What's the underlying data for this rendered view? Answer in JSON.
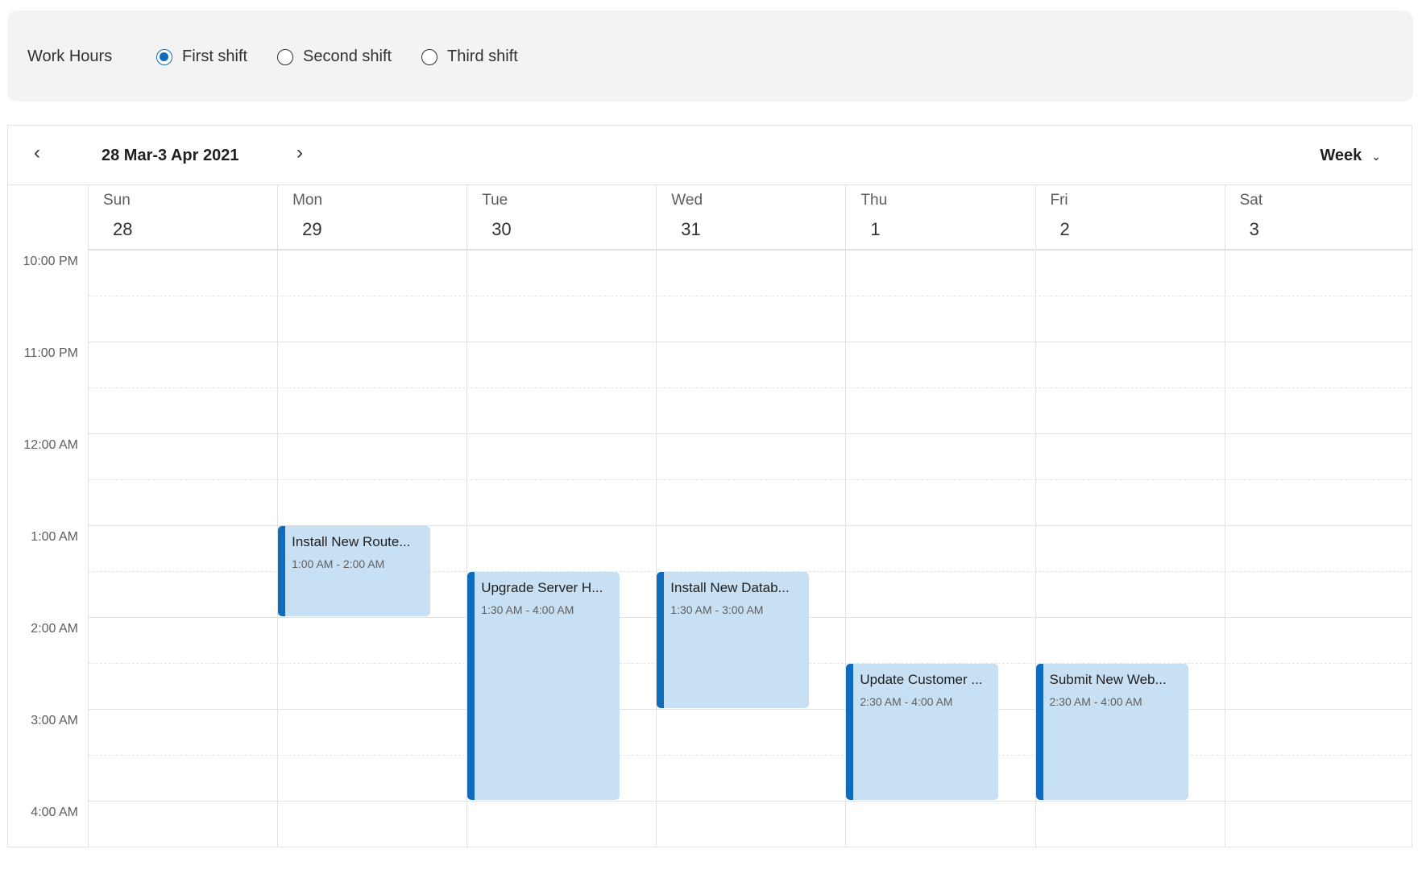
{
  "work_hours": {
    "label": "Work Hours",
    "options": [
      {
        "label": "First shift",
        "selected": true
      },
      {
        "label": "Second shift",
        "selected": false
      },
      {
        "label": "Third shift",
        "selected": false
      }
    ]
  },
  "calendar": {
    "prev_icon": "chevron-left-icon",
    "next_icon": "chevron-right-icon",
    "date_range": "28 Mar-3 Apr 2021",
    "view": "Week",
    "days": [
      {
        "name": "Sun",
        "date": "28"
      },
      {
        "name": "Mon",
        "date": "29"
      },
      {
        "name": "Tue",
        "date": "30"
      },
      {
        "name": "Wed",
        "date": "31"
      },
      {
        "name": "Thu",
        "date": "1"
      },
      {
        "name": "Fri",
        "date": "2"
      },
      {
        "name": "Sat",
        "date": "3"
      }
    ],
    "time_labels": [
      "10:00 PM",
      "11:00 PM",
      "12:00 AM",
      "1:00 AM",
      "2:00 AM",
      "3:00 AM",
      "4:00 AM"
    ],
    "events": [
      {
        "title": "Install New Route...",
        "time": "1:00 AM - 2:00 AM",
        "day": 1,
        "start_hour": 1,
        "end_hour": 2
      },
      {
        "title": "Upgrade Server H...",
        "time": "1:30 AM - 4:00 AM",
        "day": 2,
        "start_hour": 1.5,
        "end_hour": 4
      },
      {
        "title": "Install New Datab...",
        "time": "1:30 AM - 3:00 AM",
        "day": 3,
        "start_hour": 1.5,
        "end_hour": 3
      },
      {
        "title": "Update Customer ...",
        "time": "2:30 AM - 4:00 AM",
        "day": 4,
        "start_hour": 2.5,
        "end_hour": 4
      },
      {
        "title": "Submit New Web...",
        "time": "2:30 AM - 4:00 AM",
        "day": 5,
        "start_hour": 2.5,
        "end_hour": 4
      }
    ],
    "colors": {
      "event_bg": "#c7e0f4",
      "event_accent": "#0f6cbd"
    }
  }
}
